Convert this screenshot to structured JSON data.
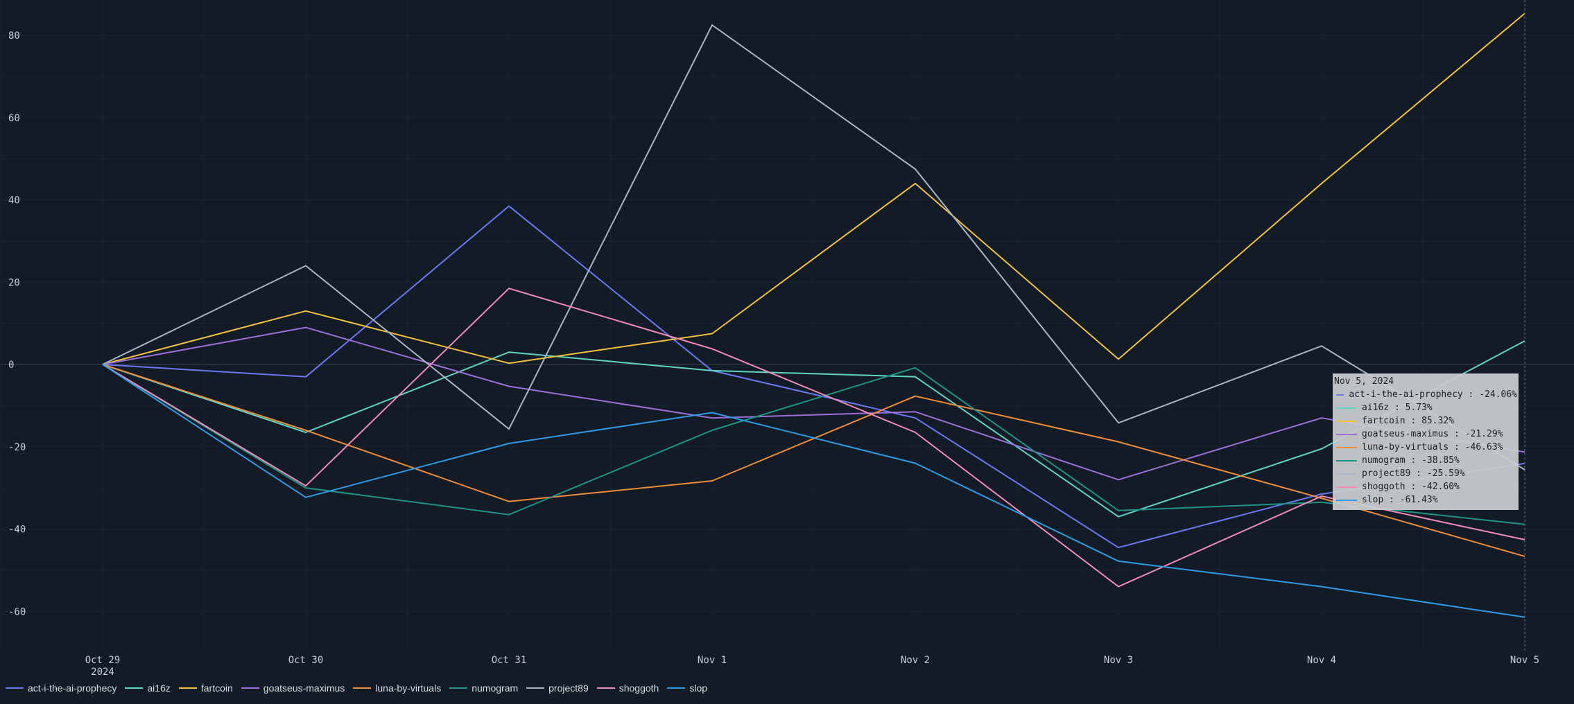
{
  "chart_data": {
    "type": "line",
    "title": "",
    "xlabel": "",
    "ylabel": "",
    "categories": [
      "Oct 29",
      "Oct 30",
      "Oct 31",
      "Nov 1",
      "Nov 2",
      "Nov 3",
      "Nov 4",
      "Nov 5"
    ],
    "x_sublabels": [
      "2024",
      "",
      "",
      "",
      "",
      "",
      "",
      ""
    ],
    "ylim": [
      -70,
      88
    ],
    "yticks": [
      -60,
      -40,
      -20,
      0,
      20,
      40,
      60,
      80
    ],
    "grid": true,
    "zero_line": true,
    "legend_position": "bottom-left",
    "series": [
      {
        "name": "act-i-the-ai-prophecy",
        "color": "#6b79f2",
        "values": [
          0,
          -3,
          38.5,
          -1.5,
          -13,
          -44.5,
          -31.5,
          -24.06
        ]
      },
      {
        "name": "ai16z",
        "color": "#5fd6c4",
        "values": [
          0,
          -16.5,
          3,
          -1.5,
          -3,
          -37,
          -20.5,
          5.73
        ]
      },
      {
        "name": "fartcoin",
        "color": "#f2c13e",
        "values": [
          0,
          13,
          0.3,
          7.5,
          44,
          1.3,
          44,
          85.32
        ]
      },
      {
        "name": "goatseus-maximus",
        "color": "#9d6fd8",
        "values": [
          0,
          9,
          -5.3,
          -13,
          -11.5,
          -28,
          -13,
          -21.29
        ]
      },
      {
        "name": "luna-by-virtuals",
        "color": "#f08d3a",
        "values": [
          0,
          -16,
          -33.3,
          -28.3,
          -7.7,
          -18.8,
          -32.5,
          -46.63
        ]
      },
      {
        "name": "numogram",
        "color": "#1e9488",
        "values": [
          0,
          -30,
          -36.5,
          -16,
          -0.8,
          -35.5,
          -33.5,
          -38.85
        ]
      },
      {
        "name": "project89",
        "color": "#a8b6c8",
        "values": [
          0,
          24,
          -15.7,
          82.5,
          47.5,
          -14.2,
          4.5,
          -25.59
        ]
      },
      {
        "name": "shoggoth",
        "color": "#f08cb8",
        "values": [
          0,
          -29.5,
          18.5,
          3.8,
          -16.5,
          -54,
          -32,
          -42.6
        ]
      },
      {
        "name": "slop",
        "color": "#2f9ae6",
        "values": [
          0,
          -32.3,
          -19.2,
          -11.7,
          -24,
          -47.8,
          -54,
          -61.43
        ]
      }
    ]
  },
  "tooltip": {
    "title": "Nov 5, 2024",
    "rows": [
      {
        "label": "act-i-the-ai-prophecy : -24.06%",
        "color": "#6b79f2"
      },
      {
        "label": "ai16z : 5.73%",
        "color": "#5fd6c4"
      },
      {
        "label": "fartcoin : 85.32%",
        "color": "#f2c13e"
      },
      {
        "label": "goatseus-maximus : -21.29%",
        "color": "#9d6fd8"
      },
      {
        "label": "luna-by-virtuals : -46.63%",
        "color": "#f08d3a"
      },
      {
        "label": "numogram : -38.85%",
        "color": "#1e9488"
      },
      {
        "label": "project89 : -25.59%",
        "color": "#a8b6c8"
      },
      {
        "label": "shoggoth : -42.60%",
        "color": "#f08cb8"
      },
      {
        "label": "slop : -61.43%",
        "color": "#2f9ae6"
      }
    ]
  }
}
